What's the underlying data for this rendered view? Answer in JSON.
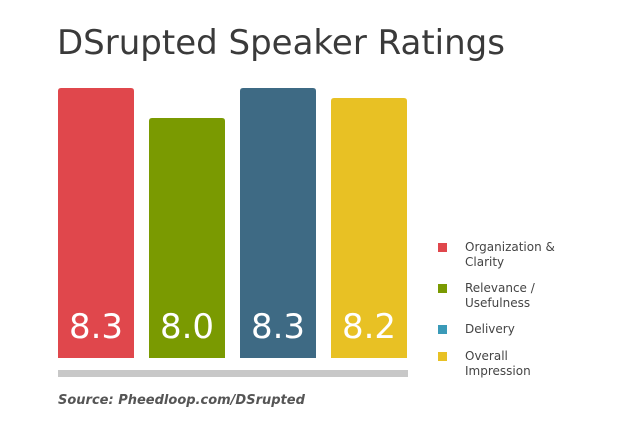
{
  "chart_data": {
    "type": "bar",
    "title": "DSrupted Speaker Ratings",
    "categories": [
      "Organization & Clarity",
      "Relevance / Usefulness",
      "Delivery",
      "Overall Impression"
    ],
    "values": [
      8.3,
      8.0,
      8.3,
      8.2
    ],
    "value_labels": [
      "8.3",
      "8.0",
      "8.3",
      "8.2"
    ],
    "colors": [
      "#e0474c",
      "#7a9a01",
      "#3e6a84",
      "#e8c124"
    ],
    "legend_colors": [
      "#e0474c",
      "#7a9a01",
      "#3a9ab8",
      "#e8c124"
    ],
    "ylim": [
      5.6,
      8.3
    ],
    "source": "Source: Pheedloop.com/DSrupted"
  }
}
